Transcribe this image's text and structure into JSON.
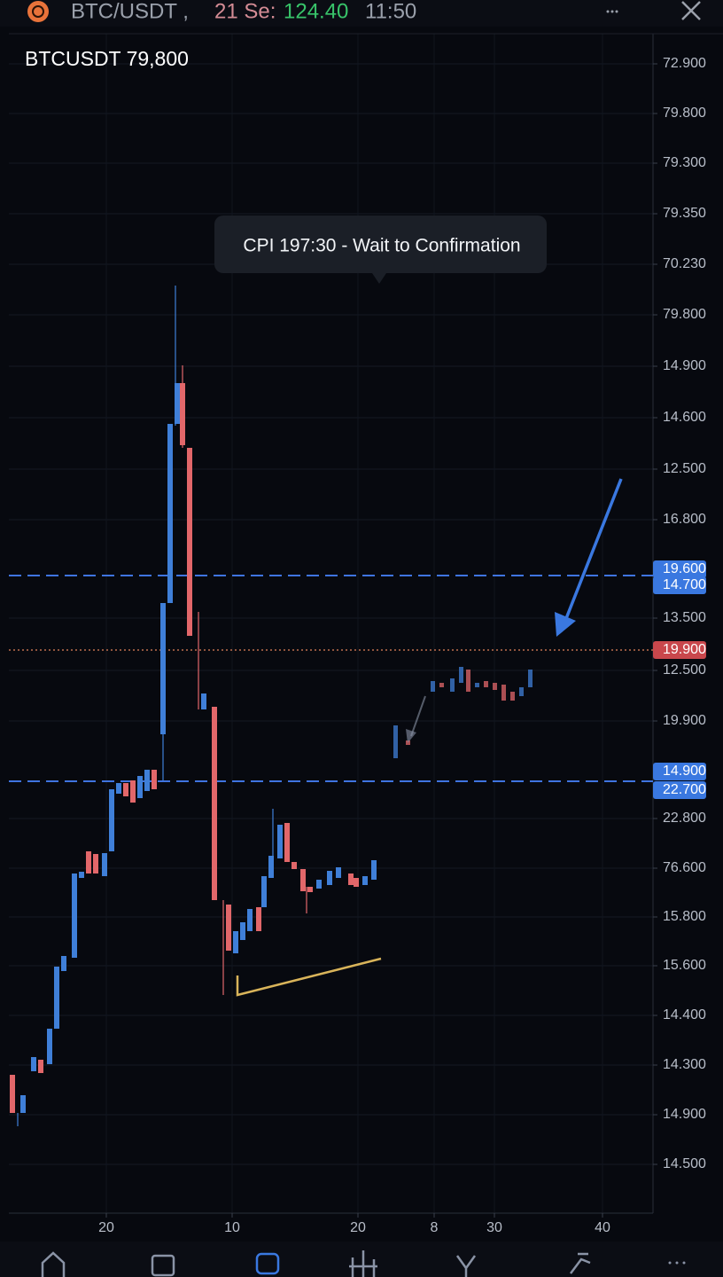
{
  "header": {
    "pair": "BTC/USDT ,",
    "date": "21 Se:",
    "price": "124.40",
    "time": "11:50"
  },
  "chart": {
    "symbol": "BTCUSDT 79,800",
    "tooltip": "CPI 197:30 - Wait to Confirmation",
    "price_axis": [
      "72.900",
      "79.800",
      "79.300",
      "79.350",
      "70.230",
      "79.800",
      "14.900",
      "14.600",
      "12.500",
      "16.800",
      "19.600",
      "14.700",
      "13.500",
      "19.900",
      "12.500",
      "19.900",
      "14.900",
      "22.700",
      "22.800",
      "76.600",
      "15.800",
      "15.600",
      "14.400",
      "14.300",
      "14.900",
      "14.500"
    ],
    "time_axis": [
      "20",
      "10",
      "20",
      "8",
      "30",
      "40"
    ]
  }
}
